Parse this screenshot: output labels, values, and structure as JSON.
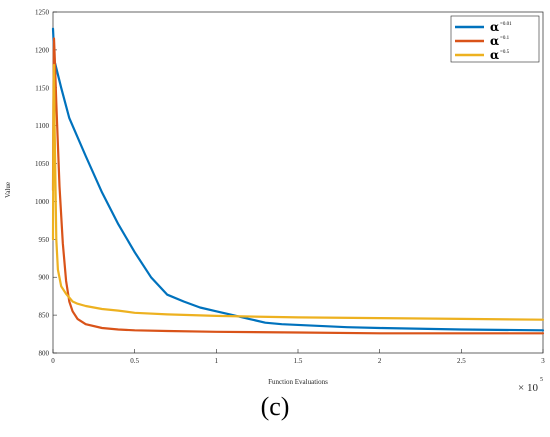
{
  "chart_data": {
    "type": "line",
    "title": "",
    "xlabel": "Function Evaluations",
    "ylabel": "Value",
    "x_exponent_label": "× 10",
    "x_exponent_power": "5",
    "xlim": [
      0,
      3
    ],
    "ylim": [
      800,
      1250
    ],
    "x_ticks": [
      "0",
      "0.5",
      "1",
      "1.5",
      "2",
      "2.5",
      "3"
    ],
    "y_ticks": [
      "800",
      "850",
      "900",
      "950",
      "1000",
      "1050",
      "1100",
      "1150",
      "1200",
      "1250"
    ],
    "legend_position": "top-right",
    "series": [
      {
        "name": "α",
        "name_sub": "=0.01",
        "color": "#0072BD",
        "x": [
          0,
          0.005,
          0.01,
          0.05,
          0.1,
          0.2,
          0.3,
          0.4,
          0.5,
          0.6,
          0.7,
          0.8,
          0.9,
          1.0,
          1.1,
          1.2,
          1.3,
          1.4,
          1.6,
          1.8,
          2.0,
          2.5,
          3.0
        ],
        "y": [
          1228,
          1205,
          1185,
          1150,
          1110,
          1060,
          1012,
          970,
          933,
          900,
          877,
          868,
          860,
          855,
          850,
          845,
          840,
          838,
          836,
          834,
          833,
          831,
          830
        ]
      },
      {
        "name": "α",
        "name_sub": "=0.1",
        "color": "#D95319",
        "x": [
          0,
          0.003,
          0.006,
          0.01,
          0.02,
          0.04,
          0.06,
          0.08,
          0.1,
          0.12,
          0.15,
          0.2,
          0.3,
          0.4,
          0.5,
          0.7,
          1.0,
          1.5,
          2.0,
          3.0
        ],
        "y": [
          1015,
          1150,
          1215,
          1195,
          1130,
          1020,
          945,
          895,
          868,
          855,
          845,
          838,
          833,
          831,
          830,
          829,
          828,
          827,
          826,
          826
        ]
      },
      {
        "name": "α",
        "name_sub": "=0.5",
        "color": "#EDB120",
        "x": [
          0,
          0.003,
          0.006,
          0.01,
          0.02,
          0.03,
          0.05,
          0.08,
          0.12,
          0.15,
          0.2,
          0.3,
          0.4,
          0.5,
          0.7,
          1.0,
          1.5,
          2.0,
          2.5,
          3.0
        ],
        "y": [
          950,
          1130,
          1180,
          1100,
          950,
          910,
          888,
          878,
          868,
          865,
          862,
          858,
          856,
          853,
          851,
          849,
          847,
          846,
          845,
          844
        ]
      }
    ]
  },
  "caption": "(c)"
}
